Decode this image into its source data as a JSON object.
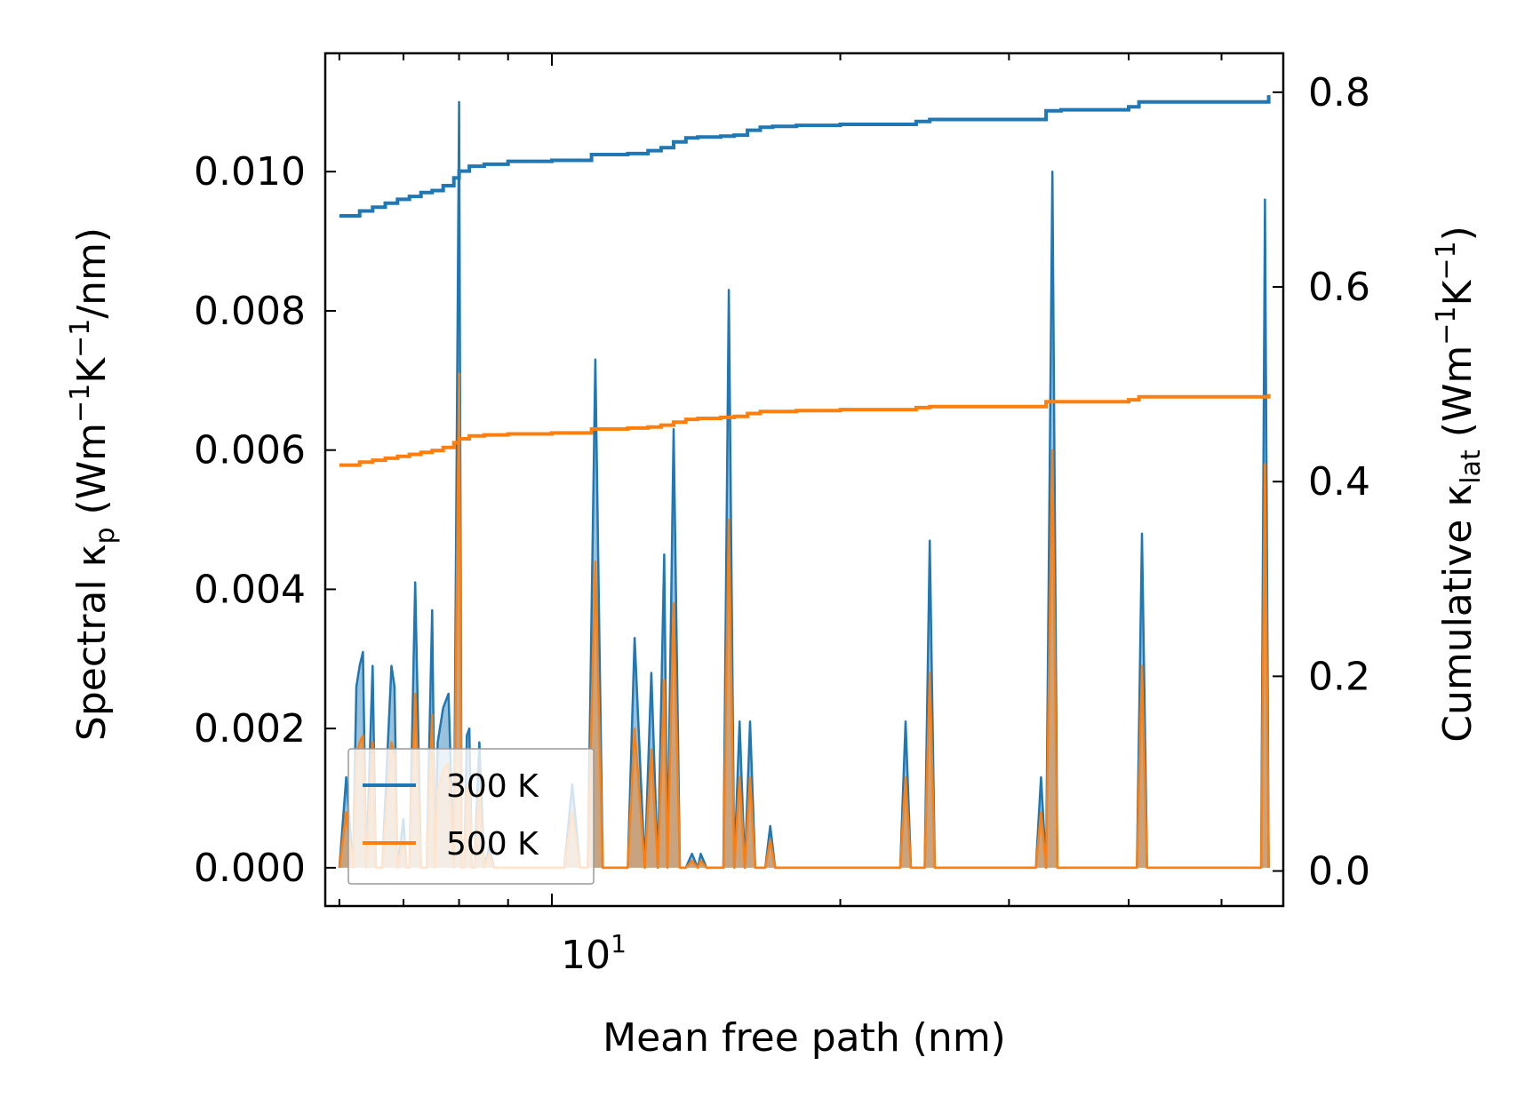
{
  "chart_data": {
    "type": "line",
    "xlabel": "Mean free path (nm)",
    "xscale": "log",
    "xlim": [
      5.8,
      58
    ],
    "x_major_tick_value": 10,
    "x_major_tick_label": "10",
    "x_major_tick_exponent": "1",
    "x_minor_ticks": [
      6,
      7,
      8,
      9,
      20,
      30,
      40,
      50
    ],
    "ylabel_left": {
      "prefix": "Spectral κ",
      "sub": "p",
      "units": " (Wm",
      "exp1": "−1",
      "mid": "K",
      "exp2": "−1",
      "suffix": "/nm)"
    },
    "ylabel_right": {
      "prefix": "Cumulative κ",
      "sub": "lat",
      "units": " (Wm",
      "exp1": "−1",
      "mid": "K",
      "exp2": "−1",
      "suffix": ")"
    },
    "ylim_left": [
      -0.00055,
      0.0117
    ],
    "ylim_right": [
      -0.036,
      0.84
    ],
    "yticks_left": [
      0.0,
      0.002,
      0.004,
      0.006,
      0.008,
      0.01
    ],
    "yticks_left_labels": [
      "0.000",
      "0.002",
      "0.004",
      "0.006",
      "0.008",
      "0.010"
    ],
    "yticks_right": [
      0.0,
      0.2,
      0.4,
      0.6,
      0.8
    ],
    "yticks_right_labels": [
      "0.0",
      "0.2",
      "0.4",
      "0.6",
      "0.8"
    ],
    "legend": {
      "location": "lower-left",
      "entries": [
        "300 K",
        "500 K"
      ]
    },
    "colors": {
      "300K": "#1f77b4",
      "500K": "#ff7f0e"
    },
    "spectral_x": [
      6.0,
      6.1,
      6.2,
      6.25,
      6.3,
      6.35,
      6.4,
      6.5,
      6.55,
      6.6,
      6.65,
      6.8,
      6.85,
      6.9,
      7.0,
      7.05,
      7.1,
      7.2,
      7.3,
      7.4,
      7.5,
      7.55,
      7.6,
      7.7,
      7.8,
      7.9,
      8.0,
      8.05,
      8.1,
      8.15,
      8.2,
      8.25,
      8.3,
      8.4,
      8.5,
      8.6,
      8.7,
      8.8,
      8.9,
      9.0,
      9.1,
      9.2,
      9.3,
      9.4,
      9.5,
      9.6,
      9.8,
      10.0,
      10.3,
      10.5,
      10.7,
      10.9,
      11.1,
      11.3,
      11.5,
      11.6,
      11.8,
      12.0,
      12.2,
      12.5,
      12.7,
      12.9,
      13.1,
      13.2,
      13.4,
      13.6,
      13.8,
      14.0,
      14.2,
      14.3,
      14.5,
      14.7,
      14.9,
      15.1,
      15.3,
      15.5,
      15.7,
      15.9,
      16.1,
      16.3,
      16.5,
      16.7,
      16.9,
      17.1,
      17.4,
      17.6,
      17.8,
      18.0,
      18.3,
      18.6,
      19.0,
      19.3,
      19.6,
      23.1,
      23.4,
      23.7,
      24.5,
      24.8,
      25.1,
      32.0,
      32.4,
      32.8,
      33.3,
      33.7,
      40.8,
      41.3,
      41.8,
      55.0,
      55.5,
      56.0
    ],
    "spectral_300K": [
      0.0,
      0.0013,
      0.0,
      0.0026,
      0.0029,
      0.0031,
      0.0,
      0.0029,
      0.0,
      0.0,
      0.0,
      0.0029,
      0.0026,
      0.0,
      0.0007,
      0.0,
      0.0,
      0.0041,
      0.0,
      0.0,
      0.0037,
      0.0,
      0.0018,
      0.0023,
      0.0025,
      0.0,
      0.011,
      0.0,
      0.0,
      0.0019,
      0.002,
      0.0,
      0.0,
      0.0018,
      0.0,
      0.0003,
      0.0,
      0.0,
      0.0,
      0.0,
      0.0,
      0.0,
      0.0,
      0.0,
      0.0,
      0.0,
      0.0,
      0.0,
      0.0,
      0.0012,
      0.0,
      0.0,
      0.0073,
      0.0,
      0.0,
      0.0,
      0.0,
      0.0,
      0.0033,
      0.0,
      0.0028,
      0.0,
      0.0045,
      0.0,
      0.0063,
      0.0,
      0.0,
      0.0002,
      0.0,
      0.0002,
      0.0,
      0.0,
      0.0,
      0.0,
      0.0083,
      0.0,
      0.0021,
      0.0,
      0.0021,
      0.0,
      0.0,
      0.0,
      0.0006,
      0.0,
      0.0,
      0.0,
      0.0,
      0.0,
      0.0,
      0.0,
      0.0,
      0.0,
      0.0,
      0.0,
      0.0021,
      0.0,
      0.0,
      0.0047,
      0.0,
      0.0,
      0.0013,
      0.0,
      0.01,
      0.0,
      0.0,
      0.0048,
      0.0,
      0.0,
      0.0096,
      0.0
    ],
    "spectral_500K": [
      0.0,
      0.0008,
      0.0,
      0.0016,
      0.0018,
      0.0019,
      0.0,
      0.0018,
      0.0,
      0.0,
      0.0,
      0.0018,
      0.0016,
      0.0,
      0.0004,
      0.0,
      0.0,
      0.0025,
      0.0,
      0.0,
      0.0022,
      0.0,
      0.0011,
      0.0014,
      0.0015,
      0.0,
      0.0071,
      0.0,
      0.0,
      0.0011,
      0.0012,
      0.0,
      0.0,
      0.0011,
      0.0,
      0.0002,
      0.0,
      0.0,
      0.0,
      0.0,
      0.0,
      0.0,
      0.0,
      0.0,
      0.0,
      0.0,
      0.0,
      0.0,
      0.0,
      0.0008,
      0.0,
      0.0,
      0.0044,
      0.0,
      0.0,
      0.0,
      0.0,
      0.0,
      0.002,
      0.0,
      0.0017,
      0.0,
      0.0027,
      0.0,
      0.0038,
      0.0,
      0.0,
      0.0001,
      0.0,
      0.0001,
      0.0,
      0.0,
      0.0,
      0.0,
      0.005,
      0.0,
      0.0013,
      0.0,
      0.0013,
      0.0,
      0.0,
      0.0,
      0.0004,
      0.0,
      0.0,
      0.0,
      0.0,
      0.0,
      0.0,
      0.0,
      0.0,
      0.0,
      0.0,
      0.0,
      0.0013,
      0.0,
      0.0,
      0.0028,
      0.0,
      0.0,
      0.0008,
      0.0,
      0.006,
      0.0,
      0.0,
      0.0029,
      0.0,
      0.0,
      0.0058,
      0.0
    ],
    "cumulative_x": [
      6.0,
      6.2,
      6.3,
      6.5,
      6.7,
      6.9,
      7.1,
      7.3,
      7.5,
      7.7,
      7.9,
      8.0,
      8.2,
      8.5,
      9.0,
      10.0,
      11.0,
      12.0,
      12.6,
      13.0,
      13.4,
      13.8,
      14.2,
      15.0,
      15.5,
      16.0,
      16.5,
      17.0,
      18.0,
      19.0,
      20.0,
      22.0,
      24.0,
      24.8,
      30.0,
      32.0,
      32.8,
      34.0,
      40.0,
      41.0,
      45.0,
      50.0,
      55.0,
      56.0
    ],
    "cumulative_300K": [
      0.673,
      0.673,
      0.678,
      0.682,
      0.686,
      0.69,
      0.693,
      0.697,
      0.699,
      0.704,
      0.712,
      0.719,
      0.724,
      0.726,
      0.729,
      0.73,
      0.736,
      0.737,
      0.74,
      0.743,
      0.749,
      0.753,
      0.754,
      0.755,
      0.756,
      0.761,
      0.764,
      0.765,
      0.766,
      0.766,
      0.767,
      0.767,
      0.77,
      0.772,
      0.772,
      0.772,
      0.781,
      0.782,
      0.785,
      0.79,
      0.79,
      0.79,
      0.79,
      0.797
    ],
    "cumulative_500K": [
      0.417,
      0.417,
      0.42,
      0.422,
      0.424,
      0.426,
      0.428,
      0.43,
      0.432,
      0.435,
      0.44,
      0.444,
      0.447,
      0.448,
      0.449,
      0.45,
      0.454,
      0.455,
      0.456,
      0.458,
      0.461,
      0.464,
      0.465,
      0.466,
      0.467,
      0.47,
      0.472,
      0.472,
      0.473,
      0.473,
      0.474,
      0.474,
      0.476,
      0.477,
      0.477,
      0.477,
      0.482,
      0.482,
      0.484,
      0.487,
      0.487,
      0.487,
      0.487,
      0.49
    ]
  }
}
